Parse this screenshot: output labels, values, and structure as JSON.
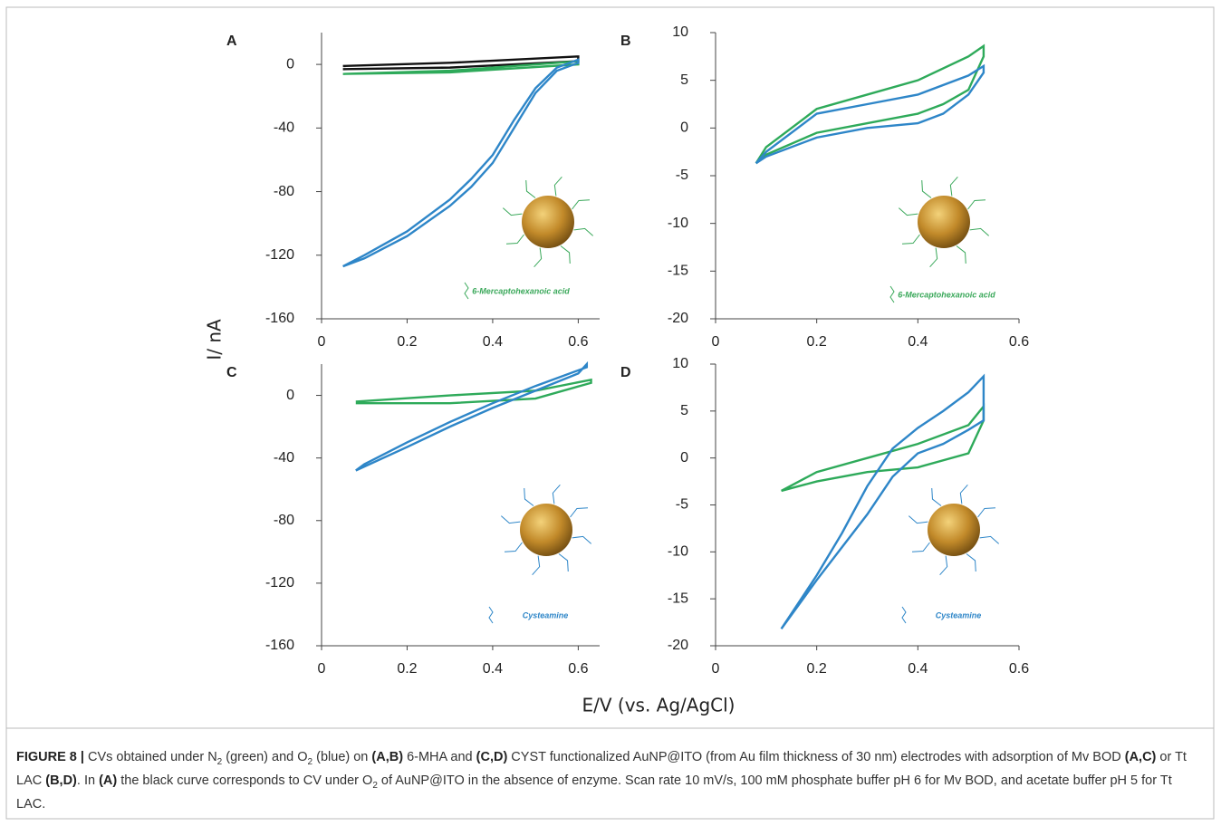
{
  "chart_data": [
    {
      "type": "line",
      "label": "A",
      "xlim": [
        0,
        0.65
      ],
      "xticks": [
        0,
        0.2,
        0.4,
        0.6
      ],
      "ylim": [
        -160,
        20
      ],
      "yticks": [
        -160,
        -120,
        -80,
        -40,
        0
      ],
      "annotation": "6-Mercaptohexanoic acid",
      "annotation_color": "#3aa85a",
      "series": [
        {
          "color": "#111111",
          "x": [
            0.05,
            0.3,
            0.6,
            0.6,
            0.3,
            0.05
          ],
          "values": [
            -1,
            1,
            5,
            2,
            -2,
            -3
          ]
        },
        {
          "color": "#2eaa5a",
          "x": [
            0.05,
            0.3,
            0.6,
            0.6,
            0.3,
            0.05
          ],
          "values": [
            -6,
            -4,
            2,
            0,
            -5,
            -6
          ]
        },
        {
          "color": "#2e86c8",
          "x": [
            0.05,
            0.1,
            0.2,
            0.3,
            0.35,
            0.4,
            0.45,
            0.5,
            0.55,
            0.6,
            0.6,
            0.55,
            0.5,
            0.45,
            0.4,
            0.35,
            0.3,
            0.2,
            0.1,
            0.05
          ],
          "values": [
            -127,
            -120,
            -105,
            -85,
            -72,
            -57,
            -35,
            -15,
            -2,
            3,
            1,
            -4,
            -18,
            -40,
            -62,
            -77,
            -89,
            -108,
            -122,
            -127
          ]
        }
      ]
    },
    {
      "type": "line",
      "label": "B",
      "xlim": [
        0,
        0.6
      ],
      "xticks": [
        0,
        0.2,
        0.4,
        0.6
      ],
      "ylim": [
        -20,
        10
      ],
      "yticks": [
        -20,
        -15,
        -10,
        -5,
        0,
        5,
        10
      ],
      "annotation": "6-Mercaptohexanoic acid",
      "annotation_color": "#3aa85a",
      "series": [
        {
          "color": "#2eaa5a",
          "x": [
            0.08,
            0.1,
            0.2,
            0.3,
            0.4,
            0.45,
            0.5,
            0.53,
            0.53,
            0.5,
            0.4,
            0.3,
            0.2,
            0.1,
            0.08
          ],
          "values": [
            -3.7,
            -2.8,
            -0.5,
            0.5,
            1.5,
            2.5,
            4,
            7.5,
            8.6,
            7.5,
            5,
            3.5,
            2,
            -2,
            -3.7
          ]
        },
        {
          "color": "#2e86c8",
          "x": [
            0.08,
            0.1,
            0.2,
            0.3,
            0.4,
            0.45,
            0.5,
            0.53,
            0.53,
            0.5,
            0.4,
            0.3,
            0.2,
            0.1,
            0.08
          ],
          "values": [
            -3.7,
            -3,
            -1,
            0,
            0.5,
            1.5,
            3.5,
            5.8,
            6.5,
            5.5,
            3.5,
            2.5,
            1.5,
            -2.5,
            -3.7
          ]
        }
      ]
    },
    {
      "type": "line",
      "label": "C",
      "xlim": [
        0,
        0.65
      ],
      "xticks": [
        0,
        0.2,
        0.4,
        0.6
      ],
      "ylim": [
        -160,
        20
      ],
      "yticks": [
        -160,
        -120,
        -80,
        -40,
        0
      ],
      "annotation": "Cysteamine",
      "annotation_color": "#2e86c8",
      "series": [
        {
          "color": "#2eaa5a",
          "x": [
            0.08,
            0.3,
            0.5,
            0.63,
            0.63,
            0.5,
            0.3,
            0.08
          ],
          "values": [
            -4,
            0,
            3,
            10,
            8,
            -2,
            -5,
            -5
          ]
        },
        {
          "color": "#2e86c8",
          "x": [
            0.08,
            0.2,
            0.3,
            0.4,
            0.5,
            0.6,
            0.62,
            0.62,
            0.5,
            0.4,
            0.3,
            0.2,
            0.1,
            0.08
          ],
          "values": [
            -48,
            -33,
            -20,
            -8,
            3,
            14,
            20,
            18,
            6,
            -5,
            -17,
            -30,
            -44,
            -48
          ]
        }
      ]
    },
    {
      "type": "line",
      "label": "D",
      "xlim": [
        0,
        0.6
      ],
      "xticks": [
        0,
        0.2,
        0.4,
        0.6
      ],
      "ylim": [
        -20,
        10
      ],
      "yticks": [
        -20,
        -15,
        -10,
        -5,
        0,
        5,
        10
      ],
      "annotation": "Cysteamine",
      "annotation_color": "#2e86c8",
      "series": [
        {
          "color": "#2eaa5a",
          "x": [
            0.13,
            0.2,
            0.3,
            0.4,
            0.5,
            0.53,
            0.53,
            0.5,
            0.4,
            0.3,
            0.2,
            0.13
          ],
          "values": [
            -3.5,
            -1.5,
            0,
            1.5,
            3.5,
            5.5,
            4,
            0.5,
            -1,
            -1.5,
            -2.5,
            -3.5
          ]
        },
        {
          "color": "#2e86c8",
          "x": [
            0.13,
            0.2,
            0.3,
            0.35,
            0.4,
            0.45,
            0.5,
            0.53,
            0.53,
            0.5,
            0.45,
            0.4,
            0.35,
            0.3,
            0.25,
            0.2,
            0.13
          ],
          "values": [
            -18.2,
            -13,
            -6,
            -2,
            0.5,
            1.5,
            3,
            4,
            8.7,
            7,
            5,
            3.2,
            1,
            -3,
            -8,
            -12.5,
            -18.2
          ]
        }
      ]
    }
  ],
  "y_axis_label": "I/ nA",
  "x_axis_label": "E/V (vs. Ag/AgCl)",
  "caption": [
    "FIGURE 8 |",
    " CVs obtained under N",
    "2",
    " (green) and O",
    "2",
    " (blue) on ",
    "(A,B)",
    " 6-MHA and ",
    "(C,D)",
    " CYST functionalized AuNP@ITO (from Au film thickness of 30 nm) electrodes with adsorption of Mv BOD ",
    "(A,C)",
    " or Tt LAC ",
    "(B,D)",
    ". In ",
    "(A)",
    " the black curve corresponds to CV under O",
    "2",
    " of AuNP@ITO in the absence of enzyme. Scan rate 10 mV/s, 100 mM phosphate buffer pH 6 for Mv BOD, and acetate buffer pH 5 for Tt LAC."
  ]
}
